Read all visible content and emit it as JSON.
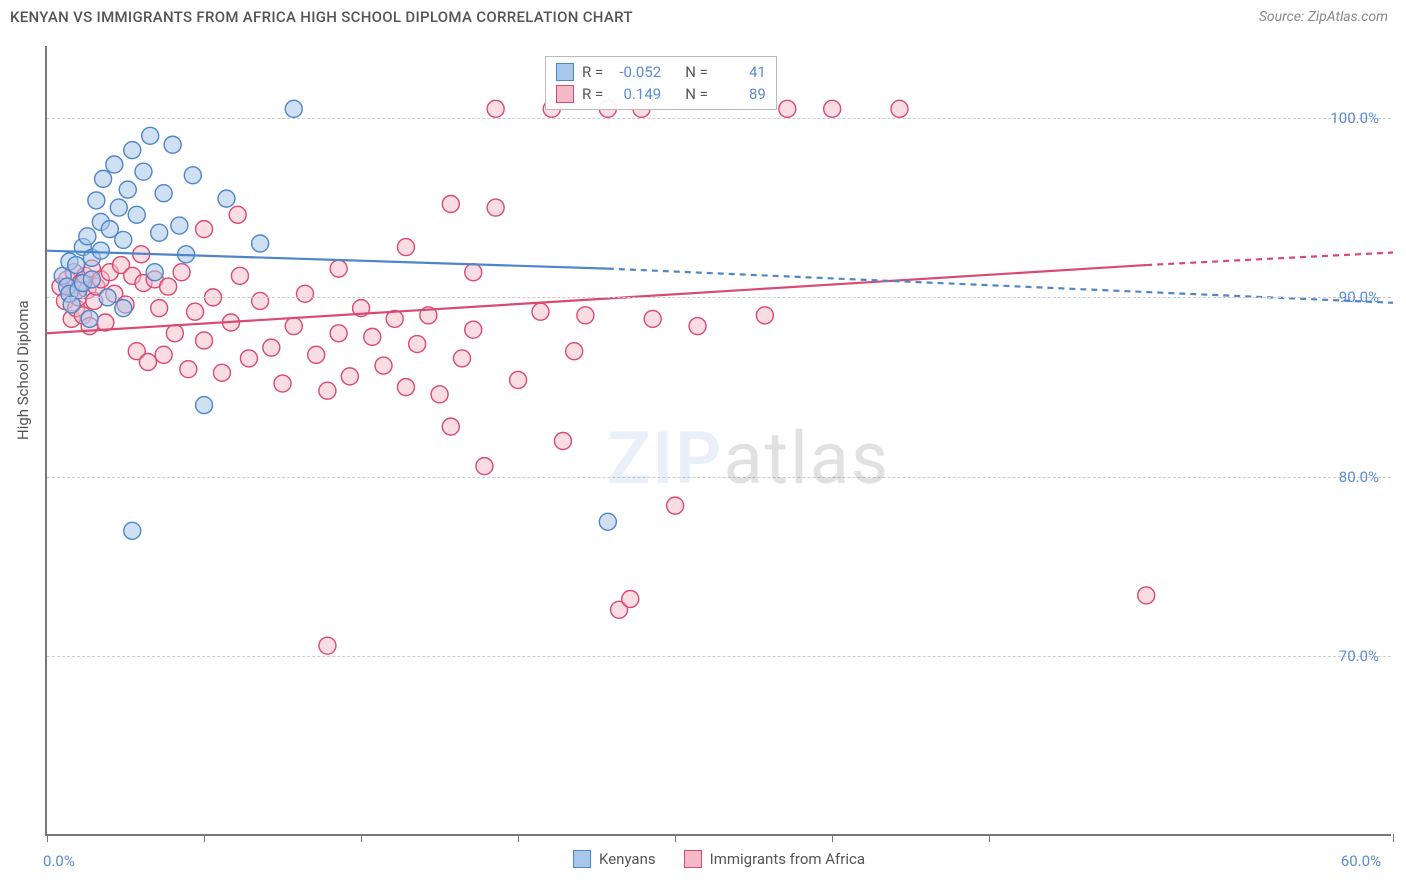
{
  "title": "KENYAN VS IMMIGRANTS FROM AFRICA HIGH SCHOOL DIPLOMA CORRELATION CHART",
  "source": "Source: ZipAtlas.com",
  "ylabel": "High School Diploma",
  "watermark_a": "ZIP",
  "watermark_b": "atlas",
  "chart": {
    "type": "scatter",
    "xlim": [
      0,
      60
    ],
    "ylim": [
      60,
      104
    ],
    "x_ticks": [
      0,
      7,
      14,
      21,
      28,
      35,
      42,
      60
    ],
    "x_tick_labels": {
      "0": "0.0%",
      "60": "60.0%"
    },
    "y_grid": [
      70,
      80,
      90,
      100
    ],
    "y_tick_labels": {
      "70": "70.0%",
      "80": "80.0%",
      "90": "90.0%",
      "100": "100.0%"
    },
    "background_color": "#ffffff",
    "grid_color": "#cccccc",
    "marker_radius": 8.5,
    "marker_stroke_width": 1.4,
    "line_width": 2.2,
    "dash_pattern": "6,5",
    "series": {
      "kenyans": {
        "label": "Kenyans",
        "fill": "#a9c7ea",
        "stroke": "#4f86c9",
        "fill_opacity": 0.55,
        "reg_solid": {
          "x1": 0,
          "y1": 92.6,
          "x2": 25,
          "y2": 91.6
        },
        "reg_dash": {
          "x1": 25,
          "y1": 91.6,
          "x2": 60,
          "y2": 89.7
        },
        "R_label": "R =",
        "R": "-0.052",
        "N_label": "N =",
        "N": "41",
        "points": [
          [
            0.7,
            91.2
          ],
          [
            0.9,
            90.6
          ],
          [
            1.0,
            92.0
          ],
          [
            1.0,
            90.2
          ],
          [
            1.1,
            89.6
          ],
          [
            1.3,
            91.8
          ],
          [
            1.4,
            90.4
          ],
          [
            1.6,
            90.8
          ],
          [
            1.6,
            92.8
          ],
          [
            1.8,
            93.4
          ],
          [
            2.0,
            91.0
          ],
          [
            2.0,
            92.2
          ],
          [
            2.2,
            95.4
          ],
          [
            2.4,
            94.2
          ],
          [
            2.4,
            92.6
          ],
          [
            2.5,
            96.6
          ],
          [
            2.7,
            90.0
          ],
          [
            2.8,
            93.8
          ],
          [
            3.0,
            97.4
          ],
          [
            3.2,
            95.0
          ],
          [
            3.4,
            93.2
          ],
          [
            3.4,
            89.4
          ],
          [
            3.6,
            96.0
          ],
          [
            3.8,
            98.2
          ],
          [
            4.0,
            94.6
          ],
          [
            4.3,
            97.0
          ],
          [
            4.6,
            99.0
          ],
          [
            4.8,
            91.4
          ],
          [
            5.0,
            93.6
          ],
          [
            5.2,
            95.8
          ],
          [
            5.6,
            98.5
          ],
          [
            5.9,
            94.0
          ],
          [
            6.2,
            92.4
          ],
          [
            6.5,
            96.8
          ],
          [
            7.0,
            84.0
          ],
          [
            3.8,
            77.0
          ],
          [
            11.0,
            100.5
          ],
          [
            25.0,
            77.5
          ],
          [
            8.0,
            95.5
          ],
          [
            9.5,
            93.0
          ],
          [
            1.9,
            88.8
          ]
        ]
      },
      "immigrants": {
        "label": "Immigrants from Africa",
        "fill": "#f5b9c7",
        "stroke": "#d94a72",
        "fill_opacity": 0.5,
        "reg_solid": {
          "x1": 0,
          "y1": 88.0,
          "x2": 49,
          "y2": 91.8
        },
        "reg_dash": {
          "x1": 49,
          "y1": 91.8,
          "x2": 60,
          "y2": 92.5
        },
        "R_label": "R =",
        "R": "0.149",
        "N_label": "N =",
        "N": "89",
        "points": [
          [
            0.6,
            90.6
          ],
          [
            0.8,
            89.8
          ],
          [
            0.9,
            91.0
          ],
          [
            1.0,
            90.2
          ],
          [
            1.1,
            88.8
          ],
          [
            1.2,
            91.4
          ],
          [
            1.3,
            89.4
          ],
          [
            1.4,
            90.0
          ],
          [
            1.5,
            90.8
          ],
          [
            1.6,
            89.0
          ],
          [
            1.7,
            91.2
          ],
          [
            1.8,
            90.4
          ],
          [
            1.9,
            88.4
          ],
          [
            2.0,
            91.6
          ],
          [
            2.1,
            89.8
          ],
          [
            2.2,
            90.6
          ],
          [
            2.4,
            91.0
          ],
          [
            2.6,
            88.6
          ],
          [
            2.8,
            91.4
          ],
          [
            3.0,
            90.2
          ],
          [
            3.3,
            91.8
          ],
          [
            3.5,
            89.6
          ],
          [
            3.8,
            91.2
          ],
          [
            4.0,
            87.0
          ],
          [
            4.3,
            90.8
          ],
          [
            4.5,
            86.4
          ],
          [
            4.8,
            91.0
          ],
          [
            5.0,
            89.4
          ],
          [
            5.2,
            86.8
          ],
          [
            5.4,
            90.6
          ],
          [
            5.7,
            88.0
          ],
          [
            6.0,
            91.4
          ],
          [
            6.3,
            86.0
          ],
          [
            6.6,
            89.2
          ],
          [
            7.0,
            87.6
          ],
          [
            7.4,
            90.0
          ],
          [
            7.8,
            85.8
          ],
          [
            8.2,
            88.6
          ],
          [
            8.6,
            91.2
          ],
          [
            9.0,
            86.6
          ],
          [
            9.5,
            89.8
          ],
          [
            10.0,
            87.2
          ],
          [
            10.5,
            85.2
          ],
          [
            11.0,
            88.4
          ],
          [
            11.5,
            90.2
          ],
          [
            12.0,
            86.8
          ],
          [
            12.5,
            84.8
          ],
          [
            13.0,
            88.0
          ],
          [
            13.5,
            85.6
          ],
          [
            14.0,
            89.4
          ],
          [
            14.5,
            87.8
          ],
          [
            15.0,
            86.2
          ],
          [
            15.5,
            88.8
          ],
          [
            16.0,
            85.0
          ],
          [
            16.5,
            87.4
          ],
          [
            17.0,
            89.0
          ],
          [
            17.5,
            84.6
          ],
          [
            18.0,
            82.8
          ],
          [
            18.5,
            86.6
          ],
          [
            19.0,
            88.2
          ],
          [
            19.5,
            80.6
          ],
          [
            20.0,
            95.0
          ],
          [
            20.0,
            100.5
          ],
          [
            21.0,
            85.4
          ],
          [
            22.0,
            89.2
          ],
          [
            22.5,
            100.5
          ],
          [
            23.0,
            82.0
          ],
          [
            23.5,
            87.0
          ],
          [
            24.0,
            89.0
          ],
          [
            25.0,
            100.5
          ],
          [
            25.5,
            72.6
          ],
          [
            26.0,
            73.2
          ],
          [
            27.0,
            88.8
          ],
          [
            28.0,
            78.4
          ],
          [
            29.0,
            88.4
          ],
          [
            32.0,
            89.0
          ],
          [
            33.0,
            100.5
          ],
          [
            35.0,
            100.5
          ],
          [
            38.0,
            100.5
          ],
          [
            26.5,
            100.5
          ],
          [
            12.5,
            70.6
          ],
          [
            7.0,
            93.8
          ],
          [
            8.5,
            94.6
          ],
          [
            4.2,
            92.4
          ],
          [
            16.0,
            92.8
          ],
          [
            18.0,
            95.2
          ],
          [
            49.0,
            73.4
          ],
          [
            13.0,
            91.6
          ],
          [
            19.0,
            91.4
          ]
        ]
      }
    }
  }
}
